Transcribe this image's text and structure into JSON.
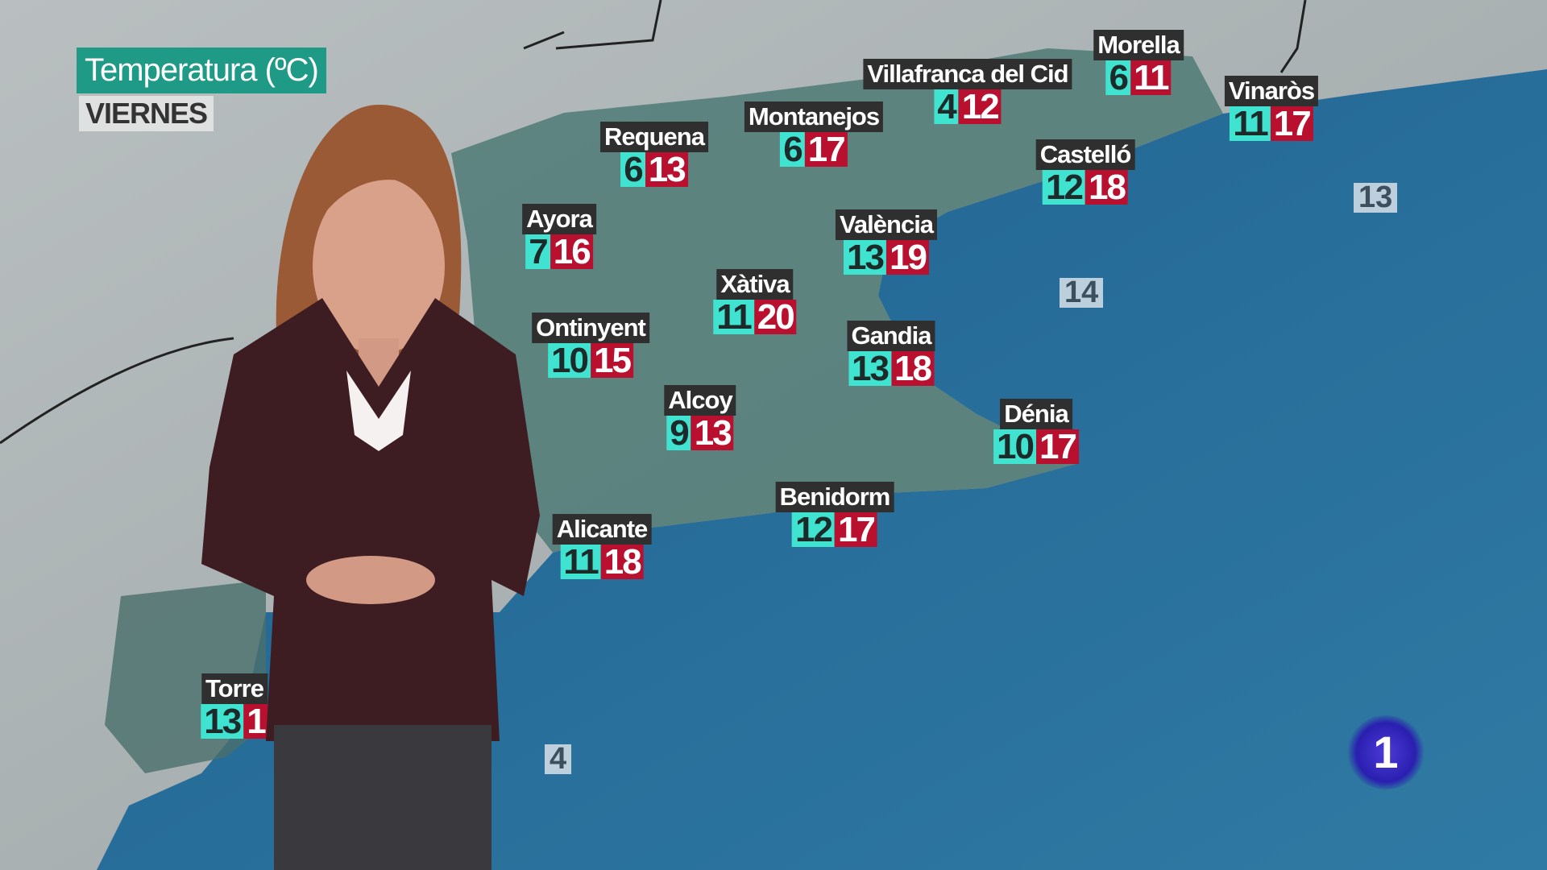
{
  "header": {
    "title": "Temperatura (ºC)",
    "day": "VIERNES"
  },
  "colors": {
    "min_temp": "#3fe3d0",
    "max_temp": "#b8102e",
    "title_bg": "#1f9a86",
    "sea": "#2a6a94"
  },
  "cities": [
    {
      "name": "Morella",
      "min": "6",
      "max": "11"
    },
    {
      "name": "Villafranca del Cid",
      "min": "4",
      "max": "12"
    },
    {
      "name": "Vinaròs",
      "min": "11",
      "max": "17"
    },
    {
      "name": "Montanejos",
      "min": "6",
      "max": "17"
    },
    {
      "name": "Requena",
      "min": "6",
      "max": "13"
    },
    {
      "name": "Castelló",
      "min": "12",
      "max": "18"
    },
    {
      "name": "Ayora",
      "min": "7",
      "max": "16"
    },
    {
      "name": "València",
      "min": "13",
      "max": "19"
    },
    {
      "name": "Xàtiva",
      "min": "11",
      "max": "20"
    },
    {
      "name": "Ontinyent",
      "min": "10",
      "max": "15"
    },
    {
      "name": "Gandia",
      "min": "13",
      "max": "18"
    },
    {
      "name": "Alcoy",
      "min": "9",
      "max": "13"
    },
    {
      "name": "Dénia",
      "min": "10",
      "max": "17"
    },
    {
      "name": "Benidorm",
      "min": "12",
      "max": "17"
    },
    {
      "name": "Alicante",
      "min": "11",
      "max": "18"
    },
    {
      "name": "Torre",
      "min": "13",
      "max": "1"
    }
  ],
  "sea_temps": [
    "13",
    "14",
    "4"
  ],
  "logo": {
    "text": "1",
    "icon": "tve-la1-logo"
  }
}
